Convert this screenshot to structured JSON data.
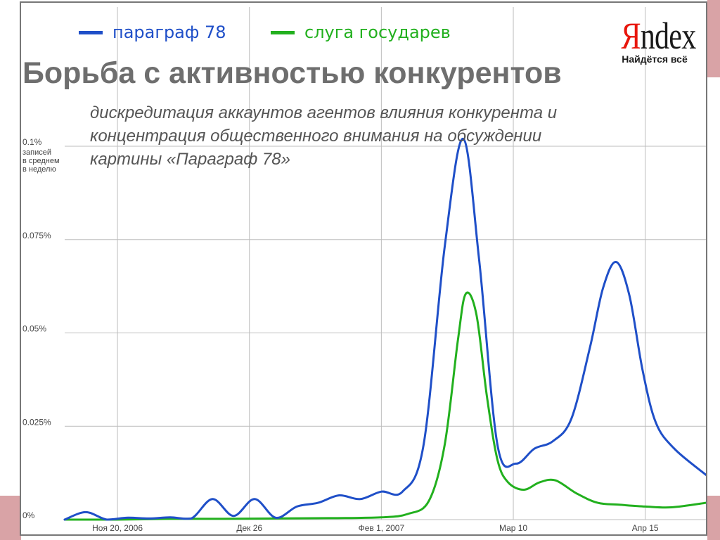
{
  "slide": {
    "title": "Борьба с активностью конкурентов",
    "subtitle_lines": [
      "дискредитация аккаунтов агентов влияния конкурента и",
      "концентрация общественного внимания на обсуждении",
      "картины «Параграф 78»"
    ]
  },
  "logo": {
    "first_letter": "Я",
    "rest": "ndex",
    "tagline": "Найдётся всё"
  },
  "colors": {
    "series_1": "#1f4fc8",
    "series_2": "#22b01e",
    "grid": "#bdbdbd",
    "axis_text": "#444444"
  },
  "chart_data": {
    "type": "line",
    "title": "",
    "xlabel": "",
    "ylabel": "записей в среднем в неделю",
    "y_tick_labels": [
      "0%",
      "0.025%",
      "0.05%",
      "0.075%",
      "0.1%"
    ],
    "y_ticks": [
      0,
      0.025,
      0.05,
      0.075,
      0.1
    ],
    "ylim": [
      0,
      0.1
    ],
    "top_tick_extra_lines": [
      "записей",
      "в среднем",
      "в неделю"
    ],
    "x_tick_labels": [
      "Ноя 20, 2006",
      "Дек 26",
      "Фев 1, 2007",
      "Мар 10",
      "Апр 15"
    ],
    "x_ticks": [
      2,
      7,
      12,
      17,
      22
    ],
    "xlim": [
      0,
      24.3
    ],
    "grid": true,
    "legend_position": "top-left",
    "series": [
      {
        "name": "параграф 78",
        "color": "#1f4fc8",
        "points": [
          [
            0,
            0
          ],
          [
            0.8,
            0.002
          ],
          [
            1.6,
            0
          ],
          [
            2.4,
            0.0005
          ],
          [
            3.2,
            0.0003
          ],
          [
            4,
            0.0006
          ],
          [
            4.8,
            0.0003
          ],
          [
            5.6,
            0.0055
          ],
          [
            6.4,
            0.001
          ],
          [
            7.2,
            0.0055
          ],
          [
            8,
            0.0005
          ],
          [
            8.8,
            0.0035
          ],
          [
            9.6,
            0.0045
          ],
          [
            10.4,
            0.0065
          ],
          [
            11.2,
            0.0055
          ],
          [
            12,
            0.0075
          ],
          [
            12.8,
            0.0075
          ],
          [
            13.6,
            0.02
          ],
          [
            14.4,
            0.073
          ],
          [
            15.1,
            0.102
          ],
          [
            15.7,
            0.07
          ],
          [
            16.4,
            0.02
          ],
          [
            17.1,
            0.015
          ],
          [
            17.8,
            0.019
          ],
          [
            18.5,
            0.021
          ],
          [
            19.2,
            0.027
          ],
          [
            19.9,
            0.046
          ],
          [
            20.4,
            0.062
          ],
          [
            20.9,
            0.069
          ],
          [
            21.4,
            0.06
          ],
          [
            21.9,
            0.04
          ],
          [
            22.4,
            0.026
          ],
          [
            23.1,
            0.019
          ],
          [
            24.3,
            0.012
          ]
        ]
      },
      {
        "name": "слуга государев",
        "color": "#22b01e",
        "points": [
          [
            0,
            0
          ],
          [
            2,
            0
          ],
          [
            4,
            0.0002
          ],
          [
            6,
            0.0002
          ],
          [
            8,
            0.0003
          ],
          [
            10,
            0.0004
          ],
          [
            12,
            0.0006
          ],
          [
            13,
            0.0015
          ],
          [
            13.8,
            0.005
          ],
          [
            14.4,
            0.02
          ],
          [
            14.9,
            0.048
          ],
          [
            15.2,
            0.0605
          ],
          [
            15.6,
            0.055
          ],
          [
            16,
            0.033
          ],
          [
            16.4,
            0.016
          ],
          [
            16.8,
            0.01
          ],
          [
            17.4,
            0.008
          ],
          [
            18,
            0.01
          ],
          [
            18.6,
            0.0105
          ],
          [
            19.4,
            0.007
          ],
          [
            20.2,
            0.0045
          ],
          [
            21,
            0.004
          ],
          [
            22,
            0.0035
          ],
          [
            23,
            0.0033
          ],
          [
            24.3,
            0.0045
          ]
        ]
      }
    ]
  }
}
